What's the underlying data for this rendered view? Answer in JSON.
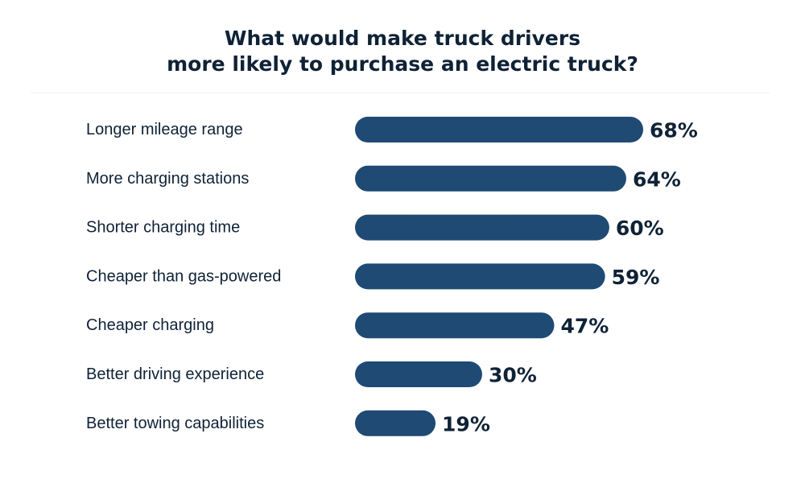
{
  "chart_data": {
    "type": "bar",
    "orientation": "horizontal",
    "title": "What would make truck drivers more likely to purchase an electric truck?",
    "title_lines": [
      "What would make truck drivers",
      "more likely to purchase an electric truck?"
    ],
    "categories": [
      "Longer mileage range",
      "More charging stations",
      "Shorter charging time",
      "Cheaper than gas-powered",
      "Cheaper charging",
      "Better driving experience",
      "Better towing capabilities"
    ],
    "values": [
      68,
      64,
      60,
      59,
      47,
      30,
      19
    ],
    "value_labels": [
      "68%",
      "64%",
      "60%",
      "59%",
      "47%",
      "30%",
      "19%"
    ],
    "unit": "%",
    "xlabel": "",
    "ylabel": "",
    "grid": false,
    "legend": "none",
    "colors": {
      "bar": "#1f4a73",
      "text": "#0f2236"
    }
  }
}
